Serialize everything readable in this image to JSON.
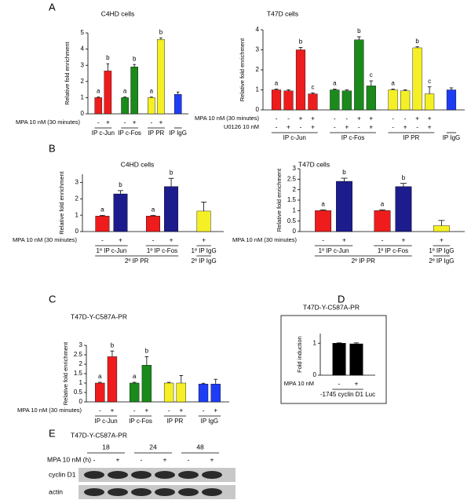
{
  "panels": [
    "A",
    "B",
    "C",
    "D",
    "E"
  ],
  "chart_data": [
    {
      "type": "bar",
      "title": "C4HD cells",
      "ylabel": "Relative fold enrichment",
      "ylim": [
        0,
        5
      ],
      "yticks": [
        0,
        1,
        2,
        3,
        4,
        5
      ],
      "rows": [
        "MPA 10 nM (30 minutes)"
      ],
      "groups": [
        {
          "label": "IP c-Jun",
          "color": "#ee1c1c",
          "values": [
            1,
            2.65
          ],
          "errors": [
            0.04,
            0.45
          ],
          "letters": [
            "a",
            "b"
          ],
          "signs": [
            [
              "-",
              "+"
            ]
          ]
        },
        {
          "label": "IP c-Fos",
          "color": "#1a8a1a",
          "values": [
            1,
            2.9
          ],
          "errors": [
            0.04,
            0.15
          ],
          "letters": [
            "a",
            "b"
          ],
          "signs": [
            [
              "-",
              "+"
            ]
          ]
        },
        {
          "label": "IP PR",
          "color": "#f5f025",
          "values": [
            1,
            4.6
          ],
          "errors": [
            0.04,
            0.1
          ],
          "letters": [
            "a",
            "b"
          ],
          "signs": [
            [
              "-",
              "+"
            ]
          ]
        },
        {
          "label": "IP IgG",
          "color": "#1f3cf5",
          "values": [
            1.2
          ],
          "errors": [
            0.15
          ],
          "letters": [
            null
          ],
          "signs": [
            [
              null
            ]
          ]
        }
      ]
    },
    {
      "type": "bar",
      "title": "T47D cells",
      "ylabel": "Relative fold enrichment",
      "ylim": [
        0,
        4
      ],
      "yticks": [
        0,
        1,
        2,
        3,
        4
      ],
      "rows": [
        "MPA 10 nM (30 minutes)",
        "U0126 10 nM"
      ],
      "groups": [
        {
          "label": "IP c-Jun",
          "color": "#ee1c1c",
          "values": [
            1,
            0.95,
            3.0,
            0.8
          ],
          "errors": [
            0.04,
            0.05,
            0.12,
            0.05
          ],
          "letters": [
            "a",
            null,
            "b",
            "c"
          ],
          "signs": [
            [
              "-",
              "-",
              "+",
              "+"
            ],
            [
              "-",
              "+",
              "-",
              "+"
            ]
          ]
        },
        {
          "label": "IP c-Fos",
          "color": "#1a8a1a",
          "values": [
            1,
            0.95,
            3.5,
            1.2
          ],
          "errors": [
            0.04,
            0.05,
            0.15,
            0.25
          ],
          "letters": [
            "a",
            null,
            "b",
            "c"
          ],
          "signs": [
            [
              "-",
              "-",
              "+",
              "+"
            ],
            [
              "-",
              "+",
              "-",
              "+"
            ]
          ]
        },
        {
          "label": "IP PR",
          "color": "#f5f025",
          "values": [
            1,
            0.95,
            3.1,
            0.8
          ],
          "errors": [
            0.04,
            0.05,
            0.05,
            0.35
          ],
          "letters": [
            "a",
            null,
            "b",
            "c"
          ],
          "signs": [
            [
              "-",
              "-",
              "+",
              "+"
            ],
            [
              "-",
              "+",
              "-",
              "+"
            ]
          ]
        },
        {
          "label": "IP IgG",
          "color": "#1f3cf5",
          "values": [
            1.0
          ],
          "errors": [
            0.1
          ],
          "letters": [
            null
          ],
          "signs": [
            [
              null
            ],
            [
              null
            ]
          ]
        }
      ]
    },
    {
      "type": "bar",
      "title": "C4HD cells",
      "ylabel": "Relative fold enrichment",
      "ylim": [
        0,
        3.5
      ],
      "yticks": [
        0,
        1,
        2,
        3
      ],
      "rows": [
        "MPA 10 nM (30 minutes)"
      ],
      "sections": [
        {
          "label": "2º IP PR",
          "groups": [
            {
              "label": "1º IP c-Jun",
              "colors": [
                "#ee1c1c",
                "#1c1c8c"
              ],
              "values": [
                0.95,
                2.3
              ],
              "errors": [
                0.04,
                0.2
              ],
              "letters": [
                "a",
                "b"
              ],
              "signs": [
                [
                  "-",
                  "+"
                ]
              ]
            },
            {
              "label": "1º IP c-Fos",
              "colors": [
                "#ee1c1c",
                "#1c1c8c"
              ],
              "values": [
                0.95,
                2.75
              ],
              "errors": [
                0.04,
                0.5
              ],
              "letters": [
                "a",
                "b"
              ],
              "signs": [
                [
                  "-",
                  "+"
                ]
              ]
            }
          ]
        },
        {
          "label": "2º IP IgG",
          "groups": [
            {
              "label": "1º IP IgG",
              "colors": [
                "#f5f025"
              ],
              "values": [
                1.25
              ],
              "errors": [
                0.55
              ],
              "letters": [
                null
              ],
              "signs": [
                [
                  "+"
                ]
              ]
            }
          ]
        }
      ]
    },
    {
      "type": "bar",
      "title": "T47D cells",
      "ylabel": "Relative fold enrichment",
      "ylim": [
        0,
        3
      ],
      "yticks": [
        0,
        0.5,
        1,
        1.5,
        2,
        2.5,
        3
      ],
      "rows": [
        "MPA 10 nM (30 minutes)"
      ],
      "sections": [
        {
          "label": "2º IP PR",
          "groups": [
            {
              "label": "1º IP c-Jun",
              "colors": [
                "#ee1c1c",
                "#1c1c8c"
              ],
              "values": [
                1,
                2.4
              ],
              "errors": [
                0.04,
                0.15
              ],
              "letters": [
                "a",
                "b"
              ],
              "signs": [
                [
                  "-",
                  "+"
                ]
              ]
            },
            {
              "label": "1º IP c-Fos",
              "colors": [
                "#ee1c1c",
                "#1c1c8c"
              ],
              "values": [
                1,
                2.15
              ],
              "errors": [
                0.04,
                0.15
              ],
              "letters": [
                "a",
                "b"
              ],
              "signs": [
                [
                  "-",
                  "+"
                ]
              ]
            }
          ]
        },
        {
          "label": "2º IP IgG",
          "groups": [
            {
              "label": "1º IP IgG",
              "colors": [
                "#f5f025"
              ],
              "values": [
                0.28
              ],
              "errors": [
                0.25
              ],
              "letters": [
                null
              ],
              "signs": [
                [
                  "+"
                ]
              ]
            }
          ]
        }
      ]
    },
    {
      "type": "bar",
      "title": "T47D-Y-C587A-PR",
      "ylabel": "Relative fold enrichment",
      "ylim": [
        0,
        3
      ],
      "yticks": [
        0,
        0.5,
        1,
        1.5,
        2,
        2.5,
        3
      ],
      "rows": [
        "MPA 10 nM (30 minutes)"
      ],
      "groups": [
        {
          "label": "IP c-Jun",
          "color": "#ee1c1c",
          "values": [
            1,
            2.4
          ],
          "errors": [
            0.04,
            0.3
          ],
          "letters": [
            "a",
            "b"
          ],
          "signs": [
            [
              "-",
              "+"
            ]
          ]
        },
        {
          "label": "IP c-Fos",
          "color": "#1a8a1a",
          "values": [
            1,
            1.95
          ],
          "errors": [
            0.04,
            0.45
          ],
          "letters": [
            "a",
            "b"
          ],
          "signs": [
            [
              "-",
              "+"
            ]
          ]
        },
        {
          "label": "IP PR",
          "color": "#f5f025",
          "values": [
            1,
            1.0
          ],
          "errors": [
            0.04,
            0.4
          ],
          "letters": [
            null,
            null
          ],
          "signs": [
            [
              "-",
              "+"
            ]
          ]
        },
        {
          "label": "IP IgG",
          "color": "#1f3cf5",
          "values": [
            0.95,
            0.95
          ],
          "errors": [
            0.04,
            0.25
          ],
          "letters": [
            null,
            null
          ],
          "signs": [
            [
              "-",
              "+"
            ]
          ]
        }
      ]
    },
    {
      "type": "bar",
      "title": "T47D-Y-C587A-PR",
      "ylabel": "Fold induction",
      "ylim": [
        0,
        1.3
      ],
      "yticks": [
        0,
        1
      ],
      "rows": [
        "MPA 10 nM"
      ],
      "groups": [
        {
          "label": "-1745 cyclin D1 Luc",
          "color": "#000000",
          "values": [
            1,
            0.98
          ],
          "errors": [
            0.01,
            0.03
          ],
          "letters": [
            null,
            null
          ],
          "signs": [
            [
              "-",
              "+"
            ]
          ]
        }
      ]
    }
  ],
  "blot": {
    "title": "T47D-Y-C587A-PR",
    "times": [
      "18",
      "24",
      "48"
    ],
    "row_label": "MPA 10 nM (h)",
    "signs": [
      "-",
      "+",
      "-",
      "+",
      "-",
      "+"
    ],
    "bands": [
      "cyclin D1",
      "actin"
    ]
  }
}
